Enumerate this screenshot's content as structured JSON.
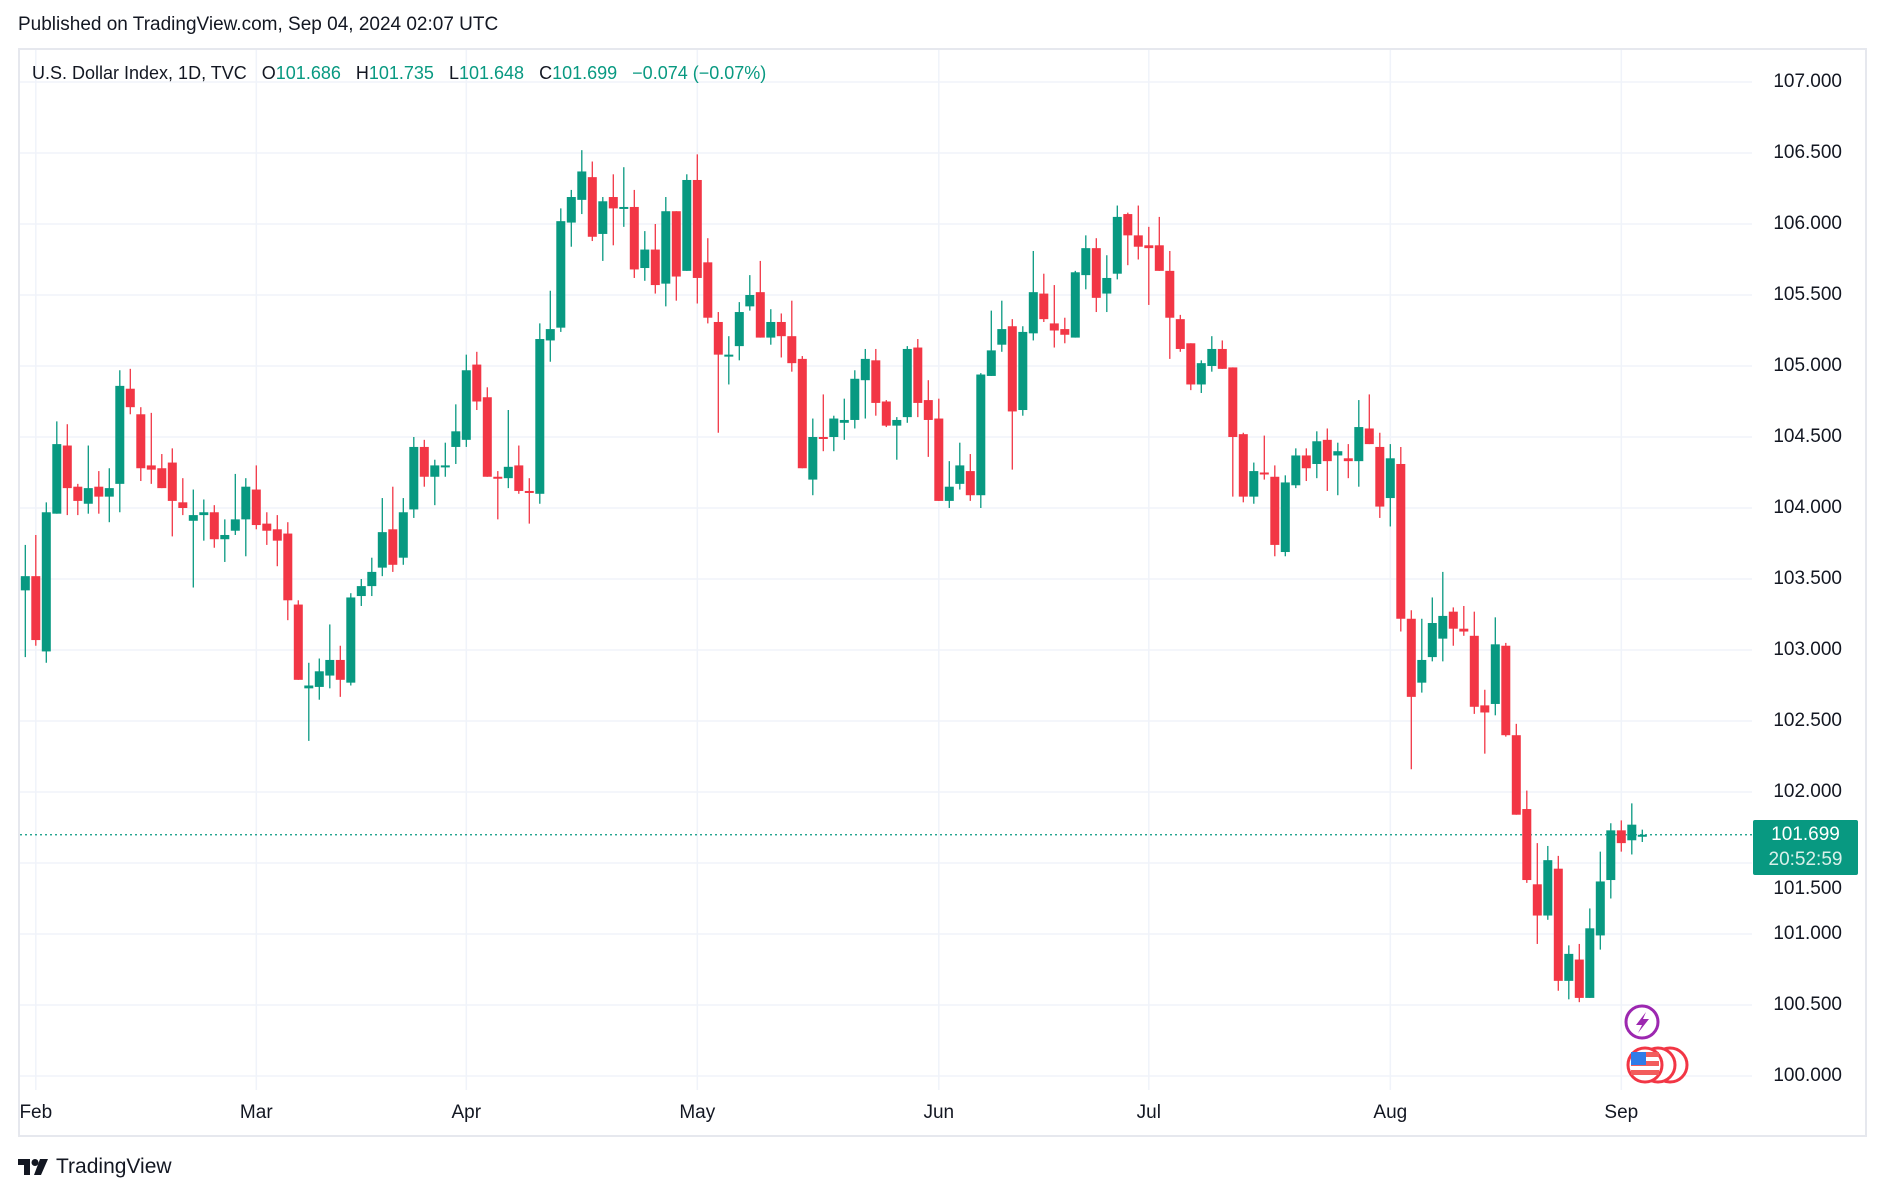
{
  "header": {
    "published": "Published on TradingView.com, Sep 04, 2024 02:07 UTC"
  },
  "legend": {
    "symbol": "U.S. Dollar Index, 1D, TVC",
    "o_label": "O",
    "o": "101.686",
    "h_label": "H",
    "h": "101.735",
    "l_label": "L",
    "l": "101.648",
    "c_label": "C",
    "c": "101.699",
    "change": "−0.074 (−0.07%)"
  },
  "last_price": {
    "value": "101.699",
    "countdown": "20:52:59"
  },
  "footer": {
    "brand": "TradingView"
  },
  "colors": {
    "up": "#089981",
    "down": "#f23645",
    "grid": "#f0f3fa",
    "events_purple": "#9c27b0"
  },
  "events": [
    {
      "icon": "lightning-icon"
    },
    {
      "icon": "us-flag-icon"
    }
  ],
  "chart_data": {
    "type": "candlestick",
    "title": "U.S. Dollar Index, 1D, TVC",
    "ylim": [
      100.0,
      107.0
    ],
    "y_ticks": [
      "100.000",
      "100.500",
      "101.000",
      "101.500",
      "102.000",
      "102.500",
      "103.000",
      "103.500",
      "104.000",
      "104.500",
      "105.000",
      "105.500",
      "106.000",
      "106.500",
      "107.000"
    ],
    "y_tick_values": [
      100,
      100.5,
      101,
      101.5,
      102,
      102.5,
      103,
      103.5,
      104,
      104.5,
      105,
      105.5,
      106,
      106.5,
      107
    ],
    "x_ticks": [
      {
        "label": "Feb",
        "index": 1
      },
      {
        "label": "Mar",
        "index": 22
      },
      {
        "label": "Apr",
        "index": 42
      },
      {
        "label": "May",
        "index": 64
      },
      {
        "label": "Jun",
        "index": 87
      },
      {
        "label": "Jul",
        "index": 107
      },
      {
        "label": "Aug",
        "index": 130
      },
      {
        "label": "Sep",
        "index": 152
      }
    ],
    "ohlc_fields": [
      "open",
      "high",
      "low",
      "close"
    ],
    "ohlc": [
      [
        103.42,
        103.74,
        102.95,
        103.52
      ],
      [
        103.52,
        103.81,
        103.03,
        103.07
      ],
      [
        102.99,
        104.04,
        102.91,
        103.97
      ],
      [
        103.96,
        104.61,
        103.96,
        104.45
      ],
      [
        104.44,
        104.59,
        103.95,
        104.14
      ],
      [
        104.15,
        104.17,
        103.95,
        104.05
      ],
      [
        104.03,
        104.44,
        103.96,
        104.14
      ],
      [
        104.15,
        104.26,
        103.96,
        104.08
      ],
      [
        104.08,
        104.28,
        103.9,
        104.14
      ],
      [
        104.17,
        104.97,
        103.97,
        104.86
      ],
      [
        104.84,
        104.98,
        104.66,
        104.71
      ],
      [
        104.66,
        104.71,
        104.19,
        104.28
      ],
      [
        104.3,
        104.67,
        104.17,
        104.27
      ],
      [
        104.28,
        104.38,
        104.14,
        104.14
      ],
      [
        104.32,
        104.42,
        103.8,
        104.05
      ],
      [
        104.04,
        104.21,
        103.95,
        104.0
      ],
      [
        103.91,
        104.13,
        103.44,
        103.95
      ],
      [
        103.95,
        104.06,
        103.77,
        103.97
      ],
      [
        103.97,
        104.02,
        103.72,
        103.78
      ],
      [
        103.78,
        103.92,
        103.62,
        103.81
      ],
      [
        103.84,
        104.24,
        103.81,
        103.92
      ],
      [
        103.92,
        104.21,
        103.66,
        104.15
      ],
      [
        104.13,
        104.3,
        103.85,
        103.88
      ],
      [
        103.89,
        103.97,
        103.74,
        103.84
      ],
      [
        103.85,
        103.95,
        103.59,
        103.77
      ],
      [
        103.82,
        103.9,
        103.21,
        103.35
      ],
      [
        103.32,
        103.35,
        102.79,
        102.79
      ],
      [
        102.73,
        102.91,
        102.36,
        102.75
      ],
      [
        102.74,
        102.94,
        102.65,
        102.85
      ],
      [
        102.82,
        103.18,
        102.73,
        102.93
      ],
      [
        102.93,
        103.03,
        102.67,
        102.79
      ],
      [
        102.77,
        103.4,
        102.75,
        103.37
      ],
      [
        103.38,
        103.5,
        103.31,
        103.45
      ],
      [
        103.45,
        103.65,
        103.38,
        103.55
      ],
      [
        103.58,
        104.07,
        103.52,
        103.83
      ],
      [
        103.85,
        104.15,
        103.55,
        103.6
      ],
      [
        103.65,
        104.07,
        103.6,
        103.97
      ],
      [
        103.99,
        104.5,
        103.93,
        104.43
      ],
      [
        104.43,
        104.48,
        104.15,
        104.22
      ],
      [
        104.22,
        104.34,
        104.02,
        104.3
      ],
      [
        104.29,
        104.46,
        104.22,
        104.3
      ],
      [
        104.43,
        104.73,
        104.31,
        104.54
      ],
      [
        104.48,
        105.08,
        104.43,
        104.97
      ],
      [
        105.01,
        105.1,
        104.69,
        104.75
      ],
      [
        104.78,
        104.85,
        104.22,
        104.22
      ],
      [
        104.22,
        104.26,
        103.92,
        104.21
      ],
      [
        104.21,
        104.69,
        104.14,
        104.29
      ],
      [
        104.3,
        104.44,
        104.1,
        104.12
      ],
      [
        104.12,
        104.21,
        103.89,
        104.11
      ],
      [
        104.1,
        105.3,
        104.03,
        105.19
      ],
      [
        105.18,
        105.53,
        105.03,
        105.26
      ],
      [
        105.27,
        106.11,
        105.24,
        106.02
      ],
      [
        106.01,
        106.24,
        105.84,
        106.19
      ],
      [
        106.17,
        106.52,
        106.07,
        106.37
      ],
      [
        106.33,
        106.44,
        105.88,
        105.91
      ],
      [
        105.93,
        106.19,
        105.74,
        106.16
      ],
      [
        106.19,
        106.35,
        105.85,
        106.11
      ],
      [
        106.11,
        106.4,
        105.98,
        106.12
      ],
      [
        106.12,
        106.24,
        105.62,
        105.68
      ],
      [
        105.69,
        105.95,
        105.6,
        105.82
      ],
      [
        105.82,
        106.0,
        105.51,
        105.57
      ],
      [
        105.58,
        106.19,
        105.42,
        106.09
      ],
      [
        106.09,
        106.09,
        105.46,
        105.63
      ],
      [
        105.67,
        106.35,
        105.67,
        106.31
      ],
      [
        106.31,
        106.49,
        105.44,
        105.62
      ],
      [
        105.73,
        105.9,
        105.3,
        105.34
      ],
      [
        105.31,
        105.38,
        104.53,
        105.08
      ],
      [
        105.07,
        105.21,
        104.87,
        105.08
      ],
      [
        105.14,
        105.45,
        105.04,
        105.38
      ],
      [
        105.42,
        105.64,
        105.39,
        105.5
      ],
      [
        105.52,
        105.74,
        105.2,
        105.2
      ],
      [
        105.2,
        105.4,
        105.15,
        105.31
      ],
      [
        105.31,
        105.37,
        105.06,
        105.21
      ],
      [
        105.21,
        105.46,
        104.96,
        105.02
      ],
      [
        105.05,
        105.07,
        104.28,
        104.28
      ],
      [
        104.2,
        104.63,
        104.09,
        104.5
      ],
      [
        104.5,
        104.8,
        104.4,
        104.49
      ],
      [
        104.5,
        104.65,
        104.4,
        104.63
      ],
      [
        104.6,
        104.77,
        104.48,
        104.62
      ],
      [
        104.62,
        104.97,
        104.56,
        104.91
      ],
      [
        104.9,
        105.12,
        104.63,
        105.05
      ],
      [
        105.04,
        105.12,
        104.65,
        104.74
      ],
      [
        104.75,
        104.76,
        104.57,
        104.58
      ],
      [
        104.58,
        104.64,
        104.34,
        104.62
      ],
      [
        104.64,
        105.14,
        104.6,
        105.12
      ],
      [
        105.13,
        105.19,
        104.64,
        104.74
      ],
      [
        104.76,
        104.9,
        104.36,
        104.62
      ],
      [
        104.63,
        104.77,
        104.05,
        104.05
      ],
      [
        104.05,
        104.33,
        104.0,
        104.15
      ],
      [
        104.17,
        104.46,
        104.13,
        104.3
      ],
      [
        104.26,
        104.38,
        104.05,
        104.09
      ],
      [
        104.09,
        104.95,
        104.0,
        104.94
      ],
      [
        104.93,
        105.39,
        104.93,
        105.11
      ],
      [
        105.15,
        105.46,
        105.1,
        105.26
      ],
      [
        105.28,
        105.33,
        104.27,
        104.68
      ],
      [
        104.69,
        105.28,
        104.65,
        105.24
      ],
      [
        105.23,
        105.81,
        105.18,
        105.52
      ],
      [
        105.51,
        105.65,
        105.31,
        105.33
      ],
      [
        105.3,
        105.57,
        105.13,
        105.25
      ],
      [
        105.26,
        105.34,
        105.16,
        105.22
      ],
      [
        105.2,
        105.67,
        105.2,
        105.66
      ],
      [
        105.64,
        105.92,
        105.54,
        105.83
      ],
      [
        105.83,
        105.9,
        105.38,
        105.48
      ],
      [
        105.51,
        105.78,
        105.38,
        105.62
      ],
      [
        105.65,
        106.13,
        105.61,
        106.05
      ],
      [
        106.07,
        106.08,
        105.71,
        105.92
      ],
      [
        105.92,
        106.13,
        105.75,
        105.84
      ],
      [
        105.85,
        105.98,
        105.43,
        105.83
      ],
      [
        105.85,
        106.05,
        105.67,
        105.67
      ],
      [
        105.67,
        105.81,
        105.05,
        105.34
      ],
      [
        105.33,
        105.36,
        105.1,
        105.12
      ],
      [
        105.16,
        105.16,
        104.83,
        104.87
      ],
      [
        104.87,
        105.04,
        104.81,
        105.02
      ],
      [
        105.0,
        105.21,
        104.96,
        105.12
      ],
      [
        105.12,
        105.18,
        104.98,
        104.98
      ],
      [
        104.99,
        104.99,
        104.08,
        104.5
      ],
      [
        104.52,
        104.53,
        104.04,
        104.08
      ],
      [
        104.08,
        104.32,
        104.03,
        104.26
      ],
      [
        104.25,
        104.51,
        104.2,
        104.24
      ],
      [
        104.22,
        104.3,
        103.66,
        103.74
      ],
      [
        103.69,
        104.23,
        103.66,
        104.18
      ],
      [
        104.16,
        104.42,
        104.14,
        104.37
      ],
      [
        104.37,
        104.42,
        104.19,
        104.28
      ],
      [
        104.31,
        104.54,
        104.21,
        104.47
      ],
      [
        104.48,
        104.56,
        104.12,
        104.33
      ],
      [
        104.37,
        104.46,
        104.09,
        104.4
      ],
      [
        104.35,
        104.45,
        104.21,
        104.33
      ],
      [
        104.33,
        104.76,
        104.15,
        104.57
      ],
      [
        104.56,
        104.8,
        104.45,
        104.45
      ],
      [
        104.43,
        104.53,
        103.93,
        104.01
      ],
      [
        104.07,
        104.45,
        103.87,
        104.35
      ],
      [
        104.31,
        104.43,
        103.13,
        103.22
      ],
      [
        103.22,
        103.28,
        102.16,
        102.67
      ],
      [
        102.77,
        103.22,
        102.7,
        102.93
      ],
      [
        102.95,
        103.37,
        102.92,
        103.19
      ],
      [
        103.08,
        103.55,
        102.92,
        103.24
      ],
      [
        103.27,
        103.3,
        103.03,
        103.15
      ],
      [
        103.15,
        103.31,
        103.1,
        103.13
      ],
      [
        103.1,
        103.27,
        102.55,
        102.6
      ],
      [
        102.61,
        102.72,
        102.27,
        102.56
      ],
      [
        102.62,
        103.23,
        102.54,
        103.04
      ],
      [
        103.03,
        103.05,
        102.39,
        102.4
      ],
      [
        102.4,
        102.48,
        101.84,
        101.84
      ],
      [
        101.88,
        102.01,
        101.36,
        101.38
      ],
      [
        101.35,
        101.64,
        100.93,
        101.13
      ],
      [
        101.13,
        101.62,
        101.1,
        101.52
      ],
      [
        101.46,
        101.55,
        100.6,
        100.67
      ],
      [
        100.67,
        100.92,
        100.54,
        100.86
      ],
      [
        100.82,
        100.93,
        100.52,
        100.55
      ],
      [
        100.55,
        101.18,
        100.55,
        101.04
      ],
      [
        100.99,
        101.58,
        100.89,
        101.37
      ],
      [
        101.38,
        101.78,
        101.25,
        101.73
      ],
      [
        101.73,
        101.8,
        101.58,
        101.64
      ],
      [
        101.66,
        101.92,
        101.56,
        101.77
      ],
      [
        101.686,
        101.735,
        101.648,
        101.699
      ]
    ],
    "last_close": 101.699
  }
}
